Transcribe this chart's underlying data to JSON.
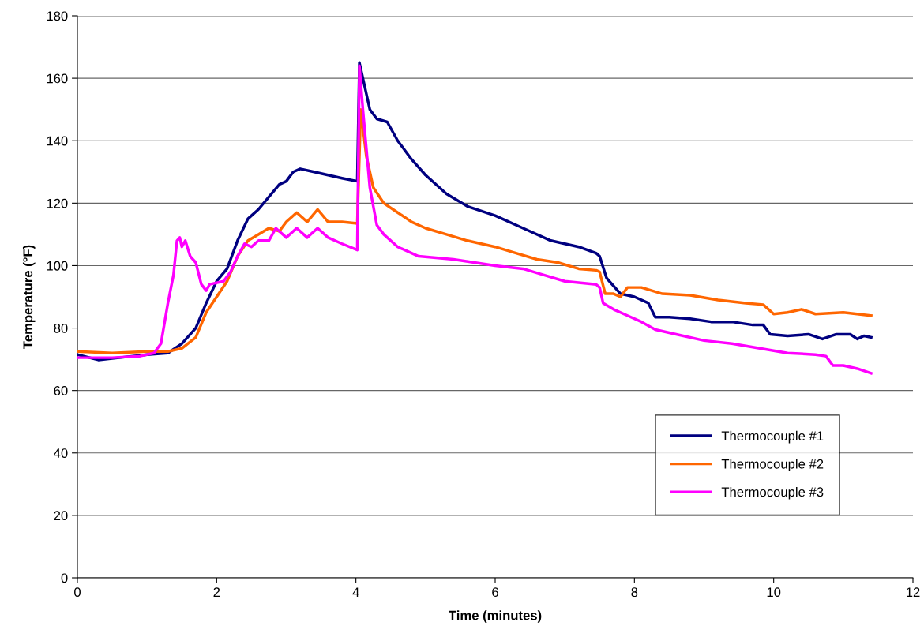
{
  "chart_data": {
    "type": "line",
    "xlabel": "Time (minutes)",
    "ylabel": "Temperature (°F)",
    "xlim": [
      0,
      12
    ],
    "xticks": [
      0,
      2,
      4,
      6,
      8,
      10,
      12
    ],
    "ylim": [
      0,
      180
    ],
    "yticks": [
      0,
      20,
      40,
      60,
      80,
      100,
      120,
      140,
      160,
      180
    ],
    "grid": "y",
    "legend": "bottom right",
    "marker": "none",
    "line_style": "solid",
    "series": [
      {
        "name": "Thermocouple #1",
        "color": "#000080",
        "x": [
          0,
          0.3,
          0.6,
          1.0,
          1.3,
          1.5,
          1.7,
          1.85,
          2.0,
          2.15,
          2.3,
          2.45,
          2.6,
          2.75,
          2.9,
          3.0,
          3.1,
          3.2,
          3.4,
          3.6,
          3.8,
          4.02,
          4.05,
          4.1,
          4.2,
          4.3,
          4.45,
          4.6,
          4.8,
          5.0,
          5.3,
          5.6,
          6.0,
          6.4,
          6.8,
          7.2,
          7.45,
          7.5,
          7.6,
          7.8,
          8.0,
          8.2,
          8.3,
          8.5,
          8.8,
          9.1,
          9.4,
          9.7,
          9.85,
          9.95,
          10.2,
          10.5,
          10.7,
          10.9,
          11.1,
          11.2,
          11.3,
          11.4
        ],
        "values": [
          71.5,
          69.8,
          70.5,
          71.5,
          72,
          75,
          80,
          88,
          95,
          99,
          108,
          115,
          118,
          122,
          126,
          127,
          130,
          131,
          130,
          129,
          128,
          127,
          165,
          160,
          150,
          147,
          146,
          140,
          134,
          129,
          123,
          119,
          116,
          112,
          108,
          106,
          104,
          103,
          96,
          91,
          90,
          88,
          83.5,
          83.5,
          83,
          82,
          82,
          81,
          81,
          78,
          77.5,
          78,
          76.5,
          78,
          78,
          76.5,
          77.5,
          77
        ]
      },
      {
        "name": "Thermocouple #2",
        "color": "#ff6600",
        "x": [
          0,
          0.5,
          1.0,
          1.3,
          1.5,
          1.7,
          1.85,
          2.0,
          2.15,
          2.3,
          2.45,
          2.6,
          2.75,
          2.9,
          3.0,
          3.15,
          3.3,
          3.45,
          3.6,
          3.8,
          4.02,
          4.07,
          4.15,
          4.25,
          4.4,
          4.6,
          4.8,
          5.0,
          5.3,
          5.6,
          6.0,
          6.3,
          6.6,
          6.9,
          7.2,
          7.45,
          7.5,
          7.58,
          7.7,
          7.8,
          7.9,
          8.1,
          8.4,
          8.8,
          9.2,
          9.6,
          9.85,
          10.0,
          10.2,
          10.4,
          10.6,
          11.0,
          11.4
        ],
        "values": [
          72.5,
          72,
          72.5,
          72.5,
          73.5,
          77,
          85,
          90,
          95,
          103,
          108,
          110,
          112,
          111,
          114,
          117,
          114,
          118,
          114,
          114,
          113.5,
          150,
          135,
          125,
          120,
          117,
          114,
          112,
          110,
          108,
          106,
          104,
          102,
          101,
          99,
          98.5,
          98,
          91,
          91,
          90,
          93,
          93,
          91,
          90.5,
          89,
          88,
          87.5,
          84.5,
          85,
          86,
          84.5,
          85,
          84
        ]
      },
      {
        "name": "Thermocouple #3",
        "color": "#ff00ff",
        "x": [
          0,
          0.5,
          0.9,
          1.1,
          1.2,
          1.3,
          1.38,
          1.43,
          1.47,
          1.5,
          1.55,
          1.62,
          1.7,
          1.78,
          1.85,
          1.9,
          2.1,
          2.2,
          2.3,
          2.4,
          2.5,
          2.6,
          2.75,
          2.85,
          3.0,
          3.15,
          3.3,
          3.45,
          3.6,
          3.8,
          4.02,
          4.05,
          4.1,
          4.2,
          4.3,
          4.4,
          4.6,
          4.9,
          5.4,
          6.0,
          6.4,
          6.7,
          7.0,
          7.45,
          7.5,
          7.55,
          7.7,
          7.9,
          8.1,
          8.3,
          8.6,
          9.0,
          9.4,
          9.8,
          10.2,
          10.6,
          10.75,
          10.85,
          11.0,
          11.2,
          11.4
        ],
        "values": [
          70.5,
          70.5,
          71,
          72,
          75,
          88,
          97,
          108,
          109,
          106,
          108,
          103,
          101,
          94,
          92,
          94,
          95,
          98,
          103,
          107,
          106,
          108,
          108,
          112,
          109,
          112,
          109,
          112,
          109,
          107,
          105,
          164,
          150,
          125,
          113,
          110,
          106,
          103,
          102,
          100,
          99,
          97,
          95,
          94,
          93,
          88,
          86,
          84,
          82,
          79.5,
          78,
          76,
          75,
          73.5,
          72,
          71.5,
          71,
          68,
          68,
          67,
          65.5
        ]
      }
    ]
  }
}
